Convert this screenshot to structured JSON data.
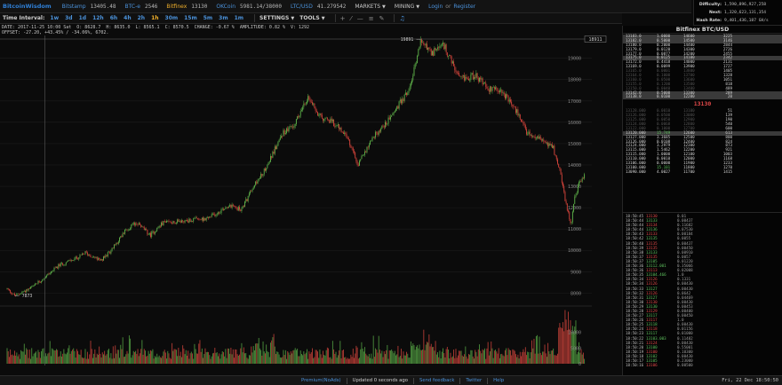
{
  "header": {
    "logo": "BitcoinWisdom",
    "tickers": [
      {
        "name": "Bitstamp",
        "price": "13405.48"
      },
      {
        "name": "BTC-e",
        "price": "2546"
      },
      {
        "name": "Bitfinex",
        "price": "13130"
      },
      {
        "name": "OKCoin",
        "price": "5981.14/38000"
      },
      {
        "name": "LTC/USD",
        "price": "41.279542"
      }
    ],
    "markets_label": "MARKETS",
    "mining_label": "MINING",
    "login_label": "Login",
    "or_label": "or",
    "register_label": "Register"
  },
  "toolbar": {
    "time_interval_label": "Time Interval:",
    "intervals": [
      "1w",
      "3d",
      "1d",
      "12h",
      "6h",
      "4h",
      "2h",
      "1h",
      "30m",
      "15m",
      "5m",
      "3m",
      "1m"
    ],
    "selected_interval": "1h",
    "settings_label": "SETTINGS",
    "tools_label": "TOOLS"
  },
  "info": {
    "line1": [
      "DATE: 2017-11-25 10:00 Sat",
      "O: 8628.7",
      "H: 8635.0",
      "L: 8565.1",
      "C: 8570.5",
      "CHANGE: -0.67 %",
      "AMPLITUDE: 0.82 %",
      "V: 1292"
    ],
    "line2": "OFFSET: -27.20, +43.45% / -34.06%, 6702."
  },
  "stats": [
    {
      "label": "Difficulty:",
      "value": "1,590,896,927,258"
    },
    {
      "label": "Next:",
      "value": "1,320,623,131,354"
    },
    {
      "label": "Hash Rate:",
      "value": "9,401,436,187 GH/s"
    }
  ],
  "orderbook": {
    "title": "Bitfinex BTC/USD",
    "last_price": "13130",
    "asks": [
      {
        "p": "13183.0",
        "a": "1.0000",
        "s": "14600",
        "t": "3225",
        "hl": true
      },
      {
        "p": "13182.0",
        "a": "0.5000",
        "s": "14500",
        "t": "3146",
        "hl": true
      },
      {
        "p": "13180.0",
        "a": "0.2000",
        "s": "14400",
        "t": "2844"
      },
      {
        "p": "13179.0",
        "a": "0.0120",
        "s": "14300",
        "t": "2726"
      },
      {
        "p": "13177.0",
        "a": "0.0877",
        "s": "14200",
        "t": "2455"
      },
      {
        "p": "13175.0",
        "a": "0.0125",
        "s": "14100",
        "t": "2342",
        "hl": true
      },
      {
        "p": "13172.0",
        "a": "0.4418",
        "s": "14000",
        "t": "2131"
      },
      {
        "p": "13169.0",
        "a": "0.0099",
        "s": "13900",
        "t": "1727"
      },
      {
        "p": "13165.0",
        "a": "0.0001",
        "s": "13800",
        "t": "1405",
        "dim": true
      },
      {
        "p": "13164.0",
        "a": "0.1000",
        "s": "13700",
        "t": "1328",
        "dim": true
      },
      {
        "p": "13160.0",
        "a": "0.0500",
        "s": "13600",
        "t": "1051",
        "dim": true
      },
      {
        "p": "13155.0",
        "a": "0.1200",
        "s": "13500",
        "t": "818",
        "dim": true
      },
      {
        "p": "13150.0",
        "a": "0.0040",
        "s": "13400",
        "t": "489",
        "dim": true
      },
      {
        "p": "13142.0",
        "a": "0.5000",
        "s": "13300",
        "t": "289",
        "hl": true
      },
      {
        "p": "13138.0",
        "a": "0.0100",
        "s": "12200",
        "t": "20",
        "hl": true
      }
    ],
    "bids": [
      {
        "p": "13128.000",
        "a": "0.0010",
        "s": "13100",
        "t": "51",
        "dim": true
      },
      {
        "p": "13126.000",
        "a": "0.0500",
        "s": "13000",
        "t": "139",
        "dim": true
      },
      {
        "p": "13125.000",
        "a": "0.0050",
        "s": "12900",
        "t": "190",
        "dim": true
      },
      {
        "p": "13124.000",
        "a": "0.0068",
        "s": "12800",
        "t": "540",
        "dim": true
      },
      {
        "p": "13122.000",
        "a": "0.1000",
        "s": "12700",
        "t": "600",
        "dim": true
      },
      {
        "p": "13120.000",
        "a": "15.749",
        "s": "12600",
        "t": "613",
        "g": true,
        "hl": true
      },
      {
        "p": "13127.000",
        "a": "3.3685",
        "s": "12500",
        "t": "800"
      },
      {
        "p": "13126.000",
        "a": "0.0108",
        "s": "12400",
        "t": "824"
      },
      {
        "p": "13124.000",
        "a": "3.2979",
        "s": "12300",
        "t": "873"
      },
      {
        "p": "13115.000",
        "a": "1.5462",
        "s": "12200",
        "t": "921"
      },
      {
        "p": "13115.000",
        "a": "1.0000",
        "s": "12100",
        "t": "1003"
      },
      {
        "p": "13110.000",
        "a": "0.0010",
        "s": "12000",
        "t": "1168"
      },
      {
        "p": "13106.000",
        "a": "0.0000",
        "s": "11900",
        "t": "1233"
      },
      {
        "p": "13100.000",
        "a": "15.101",
        "s": "11800",
        "t": "1270",
        "g": true
      },
      {
        "p": "13090.000",
        "a": "4.0027",
        "s": "11700",
        "t": "1415"
      }
    ]
  },
  "trades": [
    {
      "t": "18:50:45",
      "p": "13130",
      "c": "r",
      "a": "0.01"
    },
    {
      "t": "18:50:44",
      "p": "13133",
      "c": "g",
      "a": "0.00437"
    },
    {
      "t": "18:50:44",
      "p": "13134",
      "c": "r",
      "a": "0.11682"
    },
    {
      "t": "18:50:44",
      "p": "13136",
      "c": "g",
      "a": "0.07530"
    },
    {
      "t": "18:50:43",
      "p": "13133",
      "c": "r",
      "a": "0.00184"
    },
    {
      "t": "18:50:42",
      "p": "13135",
      "c": "g",
      "a": "0.0055"
    },
    {
      "t": "18:50:40",
      "p": "13135",
      "c": "r",
      "a": "0.00437"
    },
    {
      "t": "18:50:39",
      "p": "13135",
      "c": "r",
      "a": "0.00450"
    },
    {
      "t": "18:50:38",
      "p": "13133",
      "c": "g",
      "a": "0.00910"
    },
    {
      "t": "18:50:37",
      "p": "13135",
      "c": "r",
      "a": "0.0057"
    },
    {
      "t": "18:50:37",
      "p": "13105",
      "c": "g",
      "a": "0.01220"
    },
    {
      "t": "18:50:36",
      "p": "13112.001",
      "c": "g",
      "a": "0.35066"
    },
    {
      "t": "18:50:36",
      "p": "13113",
      "c": "r",
      "a": "0.02008"
    },
    {
      "t": "18:50:35",
      "p": "13104.466",
      "c": "g",
      "a": "1.0"
    },
    {
      "t": "18:50:34",
      "p": "13126",
      "c": "r",
      "a": "0.1331"
    },
    {
      "t": "18:50:34",
      "p": "13126",
      "c": "r",
      "a": "0.00430"
    },
    {
      "t": "18:50:33",
      "p": "13127",
      "c": "g",
      "a": "0.00430"
    },
    {
      "t": "18:50:32",
      "p": "13126",
      "c": "r",
      "a": "0.0642"
    },
    {
      "t": "18:50:31",
      "p": "13127",
      "c": "g",
      "a": "0.04469"
    },
    {
      "t": "18:50:30",
      "p": "13130",
      "c": "r",
      "a": "0.00430"
    },
    {
      "t": "18:50:29",
      "p": "13130",
      "c": "g",
      "a": "0.00453"
    },
    {
      "t": "18:50:28",
      "p": "13129",
      "c": "r",
      "a": "0.00400"
    },
    {
      "t": "18:50:27",
      "p": "13117",
      "c": "g",
      "a": "0.00450"
    },
    {
      "t": "18:50:26",
      "p": "13117",
      "c": "r",
      "a": "1.0"
    },
    {
      "t": "18:50:25",
      "p": "13118",
      "c": "g",
      "a": "0.00430"
    },
    {
      "t": "18:50:24",
      "p": "13118",
      "c": "r",
      "a": "0.01156"
    },
    {
      "t": "18:50:23",
      "p": "13117",
      "c": "g",
      "a": "0.01000"
    },
    {
      "t": "18:50:22",
      "p": "13103.003",
      "c": "g",
      "a": "0.11482"
    },
    {
      "t": "18:50:21",
      "p": "13124",
      "c": "r",
      "a": "0.00430"
    },
    {
      "t": "18:50:20",
      "p": "13100",
      "c": "g",
      "a": "0.55001"
    },
    {
      "t": "18:50:19",
      "p": "13100",
      "c": "r",
      "a": "0.10300"
    },
    {
      "t": "18:50:18",
      "p": "13102",
      "c": "g",
      "a": "0.00430"
    },
    {
      "t": "18:50:17",
      "p": "13105",
      "c": "g",
      "a": "0.23000"
    },
    {
      "t": "18:50:16",
      "p": "13106",
      "c": "r",
      "a": "0.00500"
    }
  ],
  "chart_data": {
    "type": "line",
    "title": "",
    "xlabel": "",
    "ylabel": "",
    "x_ticks": [
      "Nov 24",
      "Nov 26",
      "Nov 28",
      "Nov 30",
      "Dec 2",
      "Dec 4",
      "Dec 6",
      "Dec 8",
      "Dec 10",
      "Dec 12",
      "Dec 14",
      "Dec 16",
      "Dec 18",
      "Dec 20",
      "Dec 22",
      "Now"
    ],
    "x_cursor_label": "Nov 25",
    "y_ticks": [
      8000,
      9000,
      10000,
      11000,
      12000,
      13000,
      14000,
      15000,
      16000,
      17000,
      18000,
      19000
    ],
    "ylim": [
      7600,
      19900
    ],
    "current_price_label": "18911",
    "annotations": [
      {
        "text": "19891",
        "day": 15.9,
        "value": 19891
      },
      {
        "text": "7873",
        "day": 0.3,
        "value": 7873
      }
    ],
    "volume_ticks": [
      0,
      5000,
      10000
    ],
    "volume_max": 17000,
    "series": [
      {
        "values_by_day": [
          [
            0,
            8200
          ],
          [
            0.3,
            7873
          ],
          [
            1,
            8300
          ],
          [
            2,
            9300
          ],
          [
            2.8,
            9700
          ],
          [
            3,
            9900
          ],
          [
            3.6,
            9500
          ],
          [
            4,
            10000
          ],
          [
            4.6,
            11000
          ],
          [
            5,
            11300
          ],
          [
            5.5,
            10700
          ],
          [
            6,
            11300
          ],
          [
            7,
            11400
          ],
          [
            7.7,
            11500
          ],
          [
            8,
            11700
          ],
          [
            8.5,
            12100
          ],
          [
            9,
            11900
          ],
          [
            9.5,
            13000
          ],
          [
            10,
            14000
          ],
          [
            10.6,
            15500
          ],
          [
            11,
            15800
          ],
          [
            11.6,
            17200
          ],
          [
            12,
            16300
          ],
          [
            12.5,
            16000
          ],
          [
            13,
            15500
          ],
          [
            13.5,
            14000
          ],
          [
            14,
            15200
          ],
          [
            14.6,
            16000
          ],
          [
            15,
            16700
          ],
          [
            15.5,
            17600
          ],
          [
            15.9,
            19891
          ],
          [
            16.3,
            19200
          ],
          [
            16.8,
            19600
          ],
          [
            17.4,
            18000
          ],
          [
            18,
            18200
          ],
          [
            18.5,
            17600
          ],
          [
            19,
            17500
          ],
          [
            19.6,
            16500
          ],
          [
            20,
            15500
          ],
          [
            20.5,
            15300
          ],
          [
            21,
            14800
          ],
          [
            21.3,
            13500
          ],
          [
            21.5,
            12100
          ],
          [
            21.7,
            11200
          ],
          [
            21.8,
            12300
          ],
          [
            22,
            13200
          ],
          [
            22.2,
            13500
          ]
        ]
      }
    ]
  },
  "footer": {
    "items": [
      "Premium(NoAds)",
      "Updated 0 seconds ago",
      "Send feedback",
      "Twitter",
      "Help"
    ],
    "clock": "Fri, 22 Dec 18:50:50"
  }
}
